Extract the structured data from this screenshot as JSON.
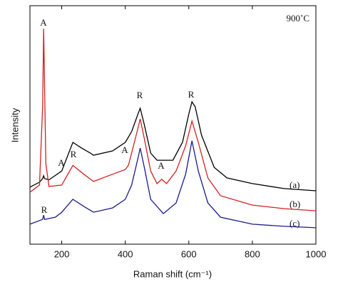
{
  "chart_data": {
    "type": "line",
    "xlabel": "Raman shift (cm⁻¹)",
    "ylabel": "Intensity",
    "note": "900˚C",
    "xlim": [
      100,
      1000
    ],
    "xticks": [
      200,
      400,
      600,
      800,
      1000
    ],
    "ylim": [
      0,
      100
    ],
    "annotations": [
      "A",
      "A",
      "R",
      "A",
      "R",
      "A",
      "R",
      "R"
    ],
    "series": [
      {
        "name": "(a)",
        "color": "#000000",
        "x": [
          100,
          130,
          140,
          143,
          146,
          160,
          200,
          235,
          260,
          290,
          300,
          360,
          400,
          420,
          440,
          447,
          460,
          480,
          500,
          550,
          580,
          600,
          610,
          620,
          640,
          680,
          720,
          800,
          900,
          1000
        ],
        "values": [
          23.9,
          26,
          27.5,
          28.7,
          27.5,
          27,
          30.7,
          42.7,
          40.5,
          38.2,
          37.3,
          39.1,
          42.7,
          47.2,
          54.6,
          57,
          50.1,
          38.2,
          35.2,
          35.2,
          42.7,
          54.6,
          59.7,
          57.6,
          45.7,
          32.2,
          27.8,
          25.4,
          23.3,
          22.4
        ]
      },
      {
        "name": "(b)",
        "color": "#d42020",
        "x": [
          100,
          130,
          140,
          143,
          146,
          150,
          160,
          200,
          235,
          270,
          300,
          360,
          400,
          410,
          420,
          440,
          447,
          460,
          480,
          500,
          515,
          530,
          560,
          590,
          610,
          630,
          660,
          700,
          800,
          900,
          1000
        ],
        "values": [
          21.8,
          24.8,
          57.9,
          90.4,
          66.6,
          33.7,
          24.2,
          24.8,
          33,
          29.3,
          26.3,
          29.3,
          31.3,
          33.1,
          38.2,
          48.7,
          52.5,
          44.2,
          30.7,
          25.4,
          27.2,
          25.4,
          30.7,
          41.2,
          51.6,
          42.7,
          27.8,
          20.3,
          16.4,
          14.9,
          14
        ]
      },
      {
        "name": "(c)",
        "color": "#1a1a8c",
        "x": [
          100,
          140,
          143,
          146,
          180,
          200,
          235,
          270,
          300,
          360,
          400,
          420,
          440,
          447,
          460,
          480,
          520,
          560,
          590,
          610,
          630,
          660,
          700,
          800,
          900,
          1000
        ],
        "values": [
          8.4,
          10.4,
          12.2,
          10.4,
          11.3,
          13.4,
          18.8,
          15.8,
          13.4,
          15.2,
          18.8,
          24.8,
          36.1,
          40.3,
          32.2,
          18.8,
          12.8,
          17.3,
          29.3,
          43.3,
          30.7,
          17.3,
          11.3,
          8.4,
          7.5,
          6.9
        ]
      }
    ]
  }
}
